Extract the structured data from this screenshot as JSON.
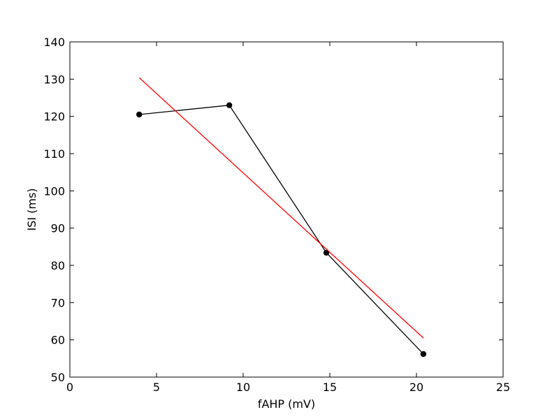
{
  "chart_data": {
    "type": "line",
    "title": "",
    "xlabel": "fAHP (mV)",
    "ylabel": "ISI (ms)",
    "xlim": [
      0,
      25
    ],
    "ylim": [
      50,
      140
    ],
    "xticks": [
      0,
      5,
      10,
      15,
      20,
      25
    ],
    "yticks": [
      50,
      60,
      70,
      80,
      90,
      100,
      110,
      120,
      130,
      140
    ],
    "grid": false,
    "series": [
      {
        "style": "line-with-markers",
        "color": "#000000",
        "x": [
          4.0,
          9.2,
          14.8,
          20.4
        ],
        "y": [
          120.5,
          123.0,
          83.4,
          56.2
        ]
      },
      {
        "style": "line",
        "color": "#ff0000",
        "x": [
          4.0,
          20.4
        ],
        "y": [
          130.4,
          60.5
        ]
      }
    ]
  }
}
